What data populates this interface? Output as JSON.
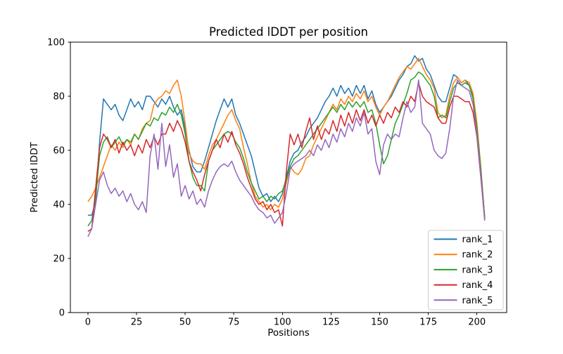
{
  "figure": {
    "title": "Predicted lDDT per position",
    "xlabel": "Positions",
    "ylabel": "Predicted lDDT",
    "background_color": "#ffffff",
    "text_color": "#000000",
    "spine_color": "#000000",
    "legend_border_color": "#cccccc"
  },
  "chart_data": {
    "type": "line",
    "title": "Predicted lDDT per position",
    "xlabel": "Positions",
    "ylabel": "Predicted lDDT",
    "xlim": [
      -9,
      215.3
    ],
    "ylim": [
      0,
      100
    ],
    "xticks": [
      0,
      25,
      50,
      75,
      100,
      125,
      150,
      175,
      200
    ],
    "yticks": [
      0,
      20,
      40,
      60,
      80,
      100
    ],
    "grid": false,
    "legend_position": "lower right",
    "line_width": 1.5,
    "x": [
      0,
      2,
      4,
      6,
      8,
      10,
      12,
      14,
      16,
      18,
      20,
      22,
      24,
      26,
      28,
      30,
      32,
      34,
      36,
      38,
      40,
      42,
      44,
      46,
      48,
      50,
      52,
      54,
      56,
      58,
      60,
      62,
      64,
      66,
      68,
      70,
      72,
      74,
      76,
      78,
      80,
      82,
      84,
      86,
      88,
      90,
      92,
      94,
      96,
      98,
      100,
      102,
      104,
      106,
      108,
      110,
      112,
      114,
      116,
      118,
      120,
      122,
      124,
      126,
      128,
      130,
      132,
      134,
      136,
      138,
      140,
      142,
      144,
      146,
      148,
      150,
      152,
      154,
      156,
      158,
      160,
      162,
      164,
      166,
      168,
      170,
      172,
      174,
      176,
      178,
      180,
      182,
      184,
      186,
      188,
      190,
      192,
      194,
      196,
      198,
      200,
      202,
      204
    ],
    "series": [
      {
        "name": "rank_1",
        "color": "#1f77b4",
        "values": [
          36,
          36,
          41,
          63,
          79,
          77,
          75,
          77,
          73,
          71,
          75,
          79,
          76,
          78,
          75,
          80,
          80,
          78,
          76,
          79,
          77,
          80,
          76,
          73,
          75,
          68,
          60,
          54,
          52,
          52,
          56,
          61,
          66,
          71,
          75,
          79,
          76,
          79,
          73,
          70,
          66,
          62,
          58,
          52,
          46,
          43,
          44,
          41,
          43,
          41,
          44,
          50,
          56,
          59,
          60,
          63,
          65,
          68,
          70,
          72,
          75,
          78,
          80,
          83,
          80,
          84,
          81,
          83,
          80,
          84,
          81,
          84,
          79,
          82,
          77,
          74,
          76,
          78,
          80,
          83,
          86,
          88,
          91,
          92,
          95,
          93,
          94,
          90,
          88,
          84,
          80,
          78,
          78,
          83,
          88,
          87,
          85,
          86,
          84,
          80,
          68,
          52,
          35
        ]
      },
      {
        "name": "rank_2",
        "color": "#ff7f0e",
        "values": [
          41,
          43,
          46,
          50,
          54,
          58,
          62,
          60,
          63,
          61,
          64,
          62,
          66,
          64,
          68,
          70,
          71,
          77,
          79,
          80,
          82,
          81,
          84,
          86,
          80,
          70,
          59,
          56,
          55,
          55,
          53,
          58,
          62,
          64,
          67,
          70,
          73,
          75,
          71,
          68,
          61,
          55,
          48,
          43,
          41,
          39,
          40,
          38,
          40,
          39,
          42,
          48,
          54,
          52,
          51,
          53,
          57,
          58,
          62,
          65,
          68,
          71,
          74,
          77,
          75,
          79,
          77,
          80,
          78,
          81,
          79,
          82,
          78,
          80,
          76,
          73,
          76,
          78,
          81,
          84,
          87,
          89,
          91,
          90,
          92,
          94,
          91,
          88,
          86,
          83,
          74,
          72,
          73,
          80,
          85,
          87,
          85,
          86,
          85,
          81,
          70,
          54,
          35
        ]
      },
      {
        "name": "rank_3",
        "color": "#2ca02c",
        "values": [
          32,
          34,
          43,
          58,
          63,
          65,
          61,
          63,
          65,
          62,
          64,
          63,
          66,
          64,
          67,
          70,
          69,
          72,
          71,
          74,
          73,
          76,
          74,
          77,
          73,
          66,
          56,
          50,
          47,
          47,
          45,
          56,
          60,
          62,
          64,
          66,
          67,
          66,
          63,
          61,
          57,
          52,
          48,
          45,
          42,
          43,
          41,
          43,
          42,
          44,
          45,
          49,
          54,
          57,
          58,
          60,
          62,
          64,
          66,
          68,
          70,
          72,
          74,
          76,
          74,
          77,
          75,
          78,
          76,
          78,
          76,
          78,
          74,
          75,
          70,
          62,
          55,
          58,
          64,
          70,
          73,
          77,
          81,
          86,
          87,
          89,
          88,
          86,
          84,
          80,
          72,
          73,
          72,
          78,
          83,
          85,
          84,
          85,
          84,
          79,
          68,
          53,
          35
        ]
      },
      {
        "name": "rank_4",
        "color": "#d62728",
        "values": [
          30,
          31,
          46,
          61,
          66,
          64,
          61,
          64,
          59,
          63,
          60,
          62,
          58,
          62,
          59,
          64,
          61,
          65,
          62,
          66,
          66,
          70,
          67,
          71,
          68,
          63,
          56,
          52,
          49,
          45,
          51,
          56,
          60,
          64,
          61,
          66,
          63,
          67,
          62,
          59,
          55,
          50,
          46,
          42,
          40,
          41,
          38,
          40,
          37,
          38,
          32,
          52,
          66,
          62,
          66,
          61,
          67,
          72,
          64,
          69,
          64,
          68,
          66,
          71,
          67,
          73,
          69,
          74,
          70,
          75,
          71,
          75,
          70,
          73,
          69,
          73,
          70,
          74,
          72,
          76,
          74,
          78,
          76,
          80,
          78,
          85,
          80,
          78,
          77,
          76,
          72,
          70,
          70,
          76,
          80,
          80,
          79,
          78,
          78,
          74,
          65,
          50,
          34
        ]
      },
      {
        "name": "rank_5",
        "color": "#9467bd",
        "values": [
          28,
          31,
          40,
          49,
          52,
          47,
          44,
          46,
          43,
          45,
          41,
          44,
          40,
          38,
          41,
          37,
          58,
          66,
          53,
          70,
          54,
          62,
          50,
          55,
          43,
          47,
          42,
          45,
          40,
          42,
          39,
          45,
          49,
          52,
          54,
          55,
          54,
          56,
          52,
          49,
          47,
          45,
          43,
          40,
          38,
          37,
          35,
          36,
          33,
          35,
          37,
          44,
          53,
          55,
          56,
          57,
          58,
          60,
          58,
          62,
          60,
          64,
          61,
          66,
          63,
          68,
          65,
          70,
          67,
          72,
          69,
          74,
          66,
          68,
          56,
          51,
          62,
          66,
          64,
          66,
          65,
          72,
          78,
          74,
          76,
          86,
          70,
          68,
          66,
          60,
          58,
          57,
          59,
          68,
          80,
          86,
          84,
          83,
          82,
          77,
          66,
          51,
          34
        ]
      }
    ]
  }
}
